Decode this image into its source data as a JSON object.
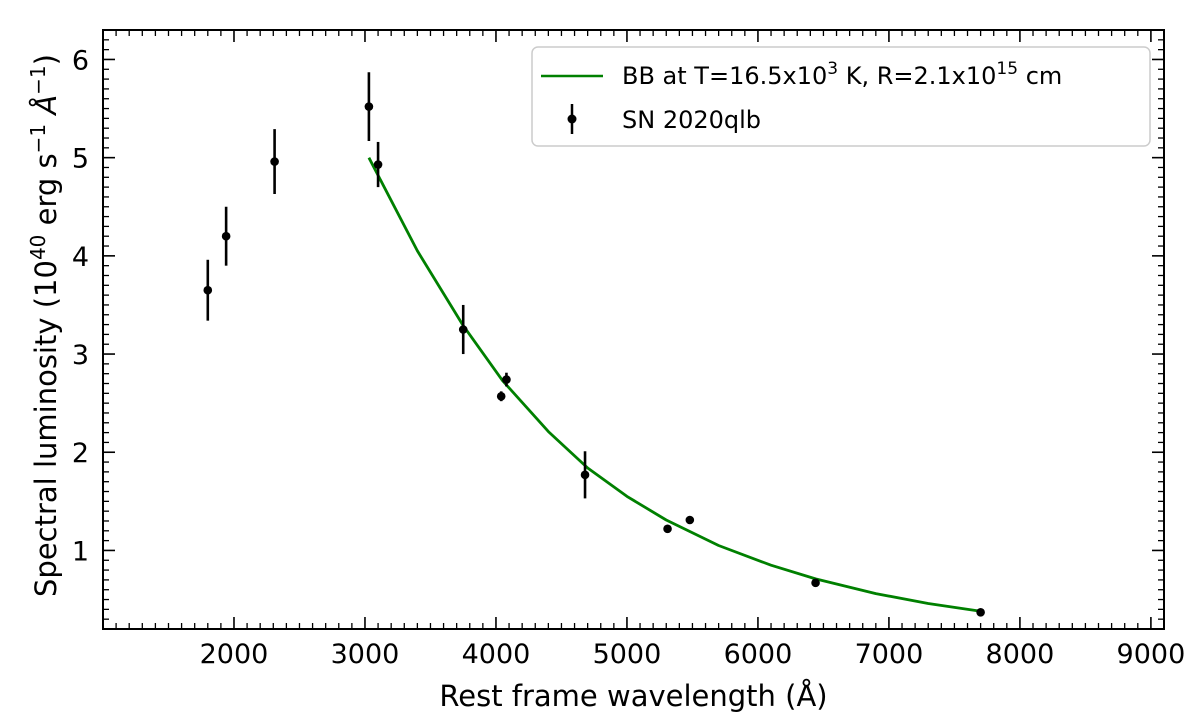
{
  "chart_data": {
    "type": "scatter",
    "xlabel": "Rest frame wavelength (Å)",
    "ylabel": {
      "prefix": "Spectral luminosity (10",
      "prefix_sup": "40",
      "mid": " erg s",
      "mid_sup": "−1",
      "angstrom": " Å",
      "angstrom_sup": "−1",
      "suffix": ")"
    },
    "xlim": [
      1000,
      9100
    ],
    "ylim": [
      0.2,
      6.3
    ],
    "xticks": [
      2000,
      3000,
      4000,
      5000,
      6000,
      7000,
      8000,
      9000
    ],
    "yticks": [
      1,
      2,
      3,
      4,
      5,
      6
    ],
    "grid": false,
    "legend_position": "top-right",
    "series": [
      {
        "name": "SN 2020qlb",
        "kind": "errorbar",
        "color": "#000000",
        "points": [
          {
            "x": 1800,
            "y": 3.65,
            "err": 0.31
          },
          {
            "x": 1940,
            "y": 4.2,
            "err": 0.3
          },
          {
            "x": 2310,
            "y": 4.96,
            "err": 0.33
          },
          {
            "x": 3030,
            "y": 5.52,
            "err": 0.35
          },
          {
            "x": 3100,
            "y": 4.93,
            "err": 0.23
          },
          {
            "x": 3750,
            "y": 3.25,
            "err": 0.25
          },
          {
            "x": 4040,
            "y": 2.57,
            "err": 0.05
          },
          {
            "x": 4080,
            "y": 2.74,
            "err": 0.07
          },
          {
            "x": 4680,
            "y": 1.77,
            "err": 0.24
          },
          {
            "x": 5310,
            "y": 1.22,
            "err": 0.0
          },
          {
            "x": 5480,
            "y": 1.31,
            "err": 0.0
          },
          {
            "x": 6440,
            "y": 0.67,
            "err": 0.0
          },
          {
            "x": 7700,
            "y": 0.37,
            "err": 0.0
          }
        ]
      },
      {
        "name": "BB at T=16.5x10³ K, R=2.1x10¹⁵ cm",
        "legend_parts": {
          "a": "BB at T=16.5x10",
          "a_sup": "3",
          "b": " K, R=2.1x10",
          "b_sup": "15",
          "c": " cm"
        },
        "kind": "line",
        "color": "#008000",
        "points": [
          {
            "x": 3030,
            "y": 5.0
          },
          {
            "x": 3400,
            "y": 4.05
          },
          {
            "x": 3750,
            "y": 3.29
          },
          {
            "x": 4050,
            "y": 2.73
          },
          {
            "x": 4400,
            "y": 2.21
          },
          {
            "x": 4700,
            "y": 1.84
          },
          {
            "x": 5000,
            "y": 1.55
          },
          {
            "x": 5300,
            "y": 1.31
          },
          {
            "x": 5700,
            "y": 1.05
          },
          {
            "x": 6100,
            "y": 0.85
          },
          {
            "x": 6440,
            "y": 0.71
          },
          {
            "x": 6900,
            "y": 0.56
          },
          {
            "x": 7300,
            "y": 0.46
          },
          {
            "x": 7700,
            "y": 0.38
          }
        ]
      }
    ]
  }
}
